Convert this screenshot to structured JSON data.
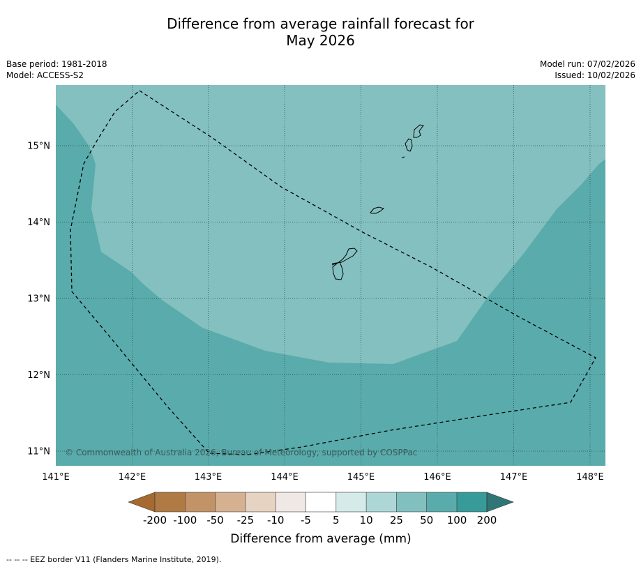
{
  "title_line1": "Difference from average rainfall forecast for",
  "title_line2": "May 2026",
  "base_period": "Base period: 1981-2018",
  "model": "Model: ACCESS-S2",
  "model_run": "Model run: 07/02/2026",
  "issued": "Issued: 10/02/2026",
  "map": {
    "lon_range": [
      141.0,
      148.2
    ],
    "lat_range": [
      10.8,
      15.8
    ],
    "lon_ticks": [
      "141°E",
      "142°E",
      "143°E",
      "144°E",
      "145°E",
      "146°E",
      "147°E",
      "148°E"
    ],
    "lat_ticks": [
      "15°N",
      "14°N",
      "13°N",
      "12°N",
      "11°N"
    ],
    "gridlines": true,
    "copyright": "© Commonwealth of Australia 2026, Bureau of Meteorology, supported by COSPPac",
    "anomaly_fields": [
      {
        "category": "50 to 100",
        "color": "#5aabab"
      },
      {
        "category": "25 to 50",
        "color": "#83c0bf"
      }
    ],
    "eez_border": true
  },
  "colorbar": {
    "title": "Difference from average (mm)",
    "labels": [
      "-200",
      "-100",
      "-50",
      "-25",
      "-10",
      "-5",
      "5",
      "10",
      "25",
      "50",
      "100",
      "200"
    ],
    "colors": [
      "#a66a30",
      "#b07a44",
      "#c29366",
      "#d5b192",
      "#e7d3c2",
      "#efe8e4",
      "#ffffff",
      "#d4ebea",
      "#acd7d6",
      "#81c0bf",
      "#5aabab",
      "#379b99",
      "#317676"
    ]
  },
  "footnote": "--  --  -- EEZ border V11 (Flanders Marine Institute, 2019)."
}
